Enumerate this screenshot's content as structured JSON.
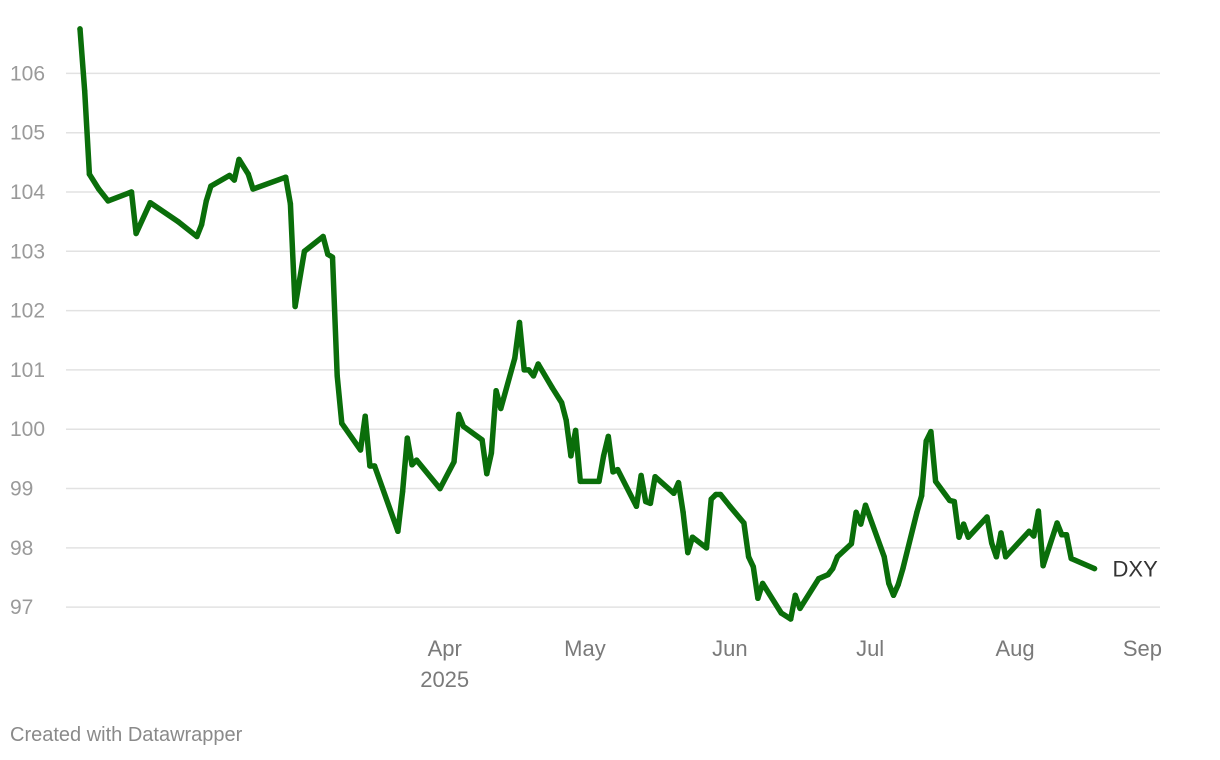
{
  "chart_data": {
    "type": "line",
    "title": "",
    "xlabel": "",
    "ylabel": "",
    "ylim": [
      96.75,
      106.9
    ],
    "xlim": [
      "2025-01-10",
      "2025-09-01"
    ],
    "y_ticks": [
      97,
      98,
      99,
      100,
      101,
      102,
      103,
      104,
      105,
      106
    ],
    "x_ticks": [
      {
        "date": "2025-04-01",
        "label": "Apr",
        "sublabel": "2025"
      },
      {
        "date": "2025-05-01",
        "label": "May",
        "sublabel": ""
      },
      {
        "date": "2025-06-01",
        "label": "Jun",
        "sublabel": ""
      },
      {
        "date": "2025-07-01",
        "label": "Jul",
        "sublabel": ""
      },
      {
        "date": "2025-08-01",
        "label": "Aug",
        "sublabel": ""
      },
      {
        "date": "2025-09-01",
        "label": "Sep",
        "sublabel": ""
      }
    ],
    "grid": true,
    "legend": "end-of-line label",
    "series": [
      {
        "name": "DXY",
        "color": "#0a6e0a",
        "points": [
          [
            "2025-01-13",
            106.75
          ],
          [
            "2025-01-14",
            105.7
          ],
          [
            "2025-01-15",
            104.3
          ],
          [
            "2025-01-17",
            104.05
          ],
          [
            "2025-01-19",
            103.85
          ],
          [
            "2025-01-24",
            104.0
          ],
          [
            "2025-01-25",
            103.3
          ],
          [
            "2025-01-28",
            103.82
          ],
          [
            "2025-02-03",
            103.5
          ],
          [
            "2025-02-07",
            103.25
          ],
          [
            "2025-02-08",
            103.45
          ],
          [
            "2025-02-09",
            103.85
          ],
          [
            "2025-02-10",
            104.1
          ],
          [
            "2025-02-14",
            104.28
          ],
          [
            "2025-02-15",
            104.2
          ],
          [
            "2025-02-16",
            104.55
          ],
          [
            "2025-02-18",
            104.3
          ],
          [
            "2025-02-19",
            104.05
          ],
          [
            "2025-02-26",
            104.25
          ],
          [
            "2025-02-27",
            103.8
          ],
          [
            "2025-02-28",
            102.07
          ],
          [
            "2025-03-02",
            103.0
          ],
          [
            "2025-03-06",
            103.25
          ],
          [
            "2025-03-07",
            102.95
          ],
          [
            "2025-03-08",
            102.9
          ],
          [
            "2025-03-09",
            100.9
          ],
          [
            "2025-03-10",
            100.1
          ],
          [
            "2025-03-14",
            99.65
          ],
          [
            "2025-03-15",
            100.22
          ],
          [
            "2025-03-16",
            99.38
          ],
          [
            "2025-03-17",
            99.38
          ],
          [
            "2025-03-22",
            98.28
          ],
          [
            "2025-03-23",
            98.95
          ],
          [
            "2025-03-24",
            99.85
          ],
          [
            "2025-03-25",
            99.4
          ],
          [
            "2025-03-26",
            99.48
          ],
          [
            "2025-03-31",
            99.0
          ],
          [
            "2025-04-03",
            99.45
          ],
          [
            "2025-04-04",
            100.25
          ],
          [
            "2025-04-05",
            100.05
          ],
          [
            "2025-04-09",
            99.82
          ],
          [
            "2025-04-10",
            99.25
          ],
          [
            "2025-04-11",
            99.6
          ],
          [
            "2025-04-12",
            100.65
          ],
          [
            "2025-04-13",
            100.35
          ],
          [
            "2025-04-16",
            101.2
          ],
          [
            "2025-04-17",
            101.8
          ],
          [
            "2025-04-18",
            101.0
          ],
          [
            "2025-04-19",
            101.0
          ],
          [
            "2025-04-20",
            100.9
          ],
          [
            "2025-04-21",
            101.1
          ],
          [
            "2025-04-24",
            100.7
          ],
          [
            "2025-04-26",
            100.45
          ],
          [
            "2025-04-27",
            100.15
          ],
          [
            "2025-04-28",
            99.55
          ],
          [
            "2025-04-29",
            99.98
          ],
          [
            "2025-04-30",
            99.12
          ],
          [
            "2025-05-04",
            99.12
          ],
          [
            "2025-05-05",
            99.55
          ],
          [
            "2025-05-06",
            99.88
          ],
          [
            "2025-05-07",
            99.28
          ],
          [
            "2025-05-08",
            99.32
          ],
          [
            "2025-05-12",
            98.7
          ],
          [
            "2025-05-13",
            99.22
          ],
          [
            "2025-05-14",
            98.78
          ],
          [
            "2025-05-15",
            98.75
          ],
          [
            "2025-05-16",
            99.2
          ],
          [
            "2025-05-20",
            98.92
          ],
          [
            "2025-05-21",
            99.1
          ],
          [
            "2025-05-22",
            98.6
          ],
          [
            "2025-05-23",
            97.92
          ],
          [
            "2025-05-24",
            98.18
          ],
          [
            "2025-05-27",
            98.0
          ],
          [
            "2025-05-28",
            98.82
          ],
          [
            "2025-05-29",
            98.9
          ],
          [
            "2025-05-30",
            98.9
          ],
          [
            "2025-06-01",
            98.7
          ],
          [
            "2025-06-04",
            98.42
          ],
          [
            "2025-06-05",
            97.85
          ],
          [
            "2025-06-06",
            97.68
          ],
          [
            "2025-06-07",
            97.15
          ],
          [
            "2025-06-08",
            97.4
          ],
          [
            "2025-06-12",
            96.9
          ],
          [
            "2025-06-14",
            96.8
          ],
          [
            "2025-06-15",
            97.2
          ],
          [
            "2025-06-16",
            96.98
          ],
          [
            "2025-06-20",
            97.48
          ],
          [
            "2025-06-22",
            97.55
          ],
          [
            "2025-06-23",
            97.65
          ],
          [
            "2025-06-24",
            97.85
          ],
          [
            "2025-06-27",
            98.07
          ],
          [
            "2025-06-28",
            98.6
          ],
          [
            "2025-06-29",
            98.4
          ],
          [
            "2025-06-30",
            98.72
          ],
          [
            "2025-07-04",
            97.85
          ],
          [
            "2025-07-05",
            97.4
          ],
          [
            "2025-07-06",
            97.2
          ],
          [
            "2025-07-07",
            97.38
          ],
          [
            "2025-07-08",
            97.65
          ],
          [
            "2025-07-11",
            98.6
          ],
          [
            "2025-07-12",
            98.88
          ],
          [
            "2025-07-13",
            99.8
          ],
          [
            "2025-07-14",
            99.96
          ],
          [
            "2025-07-15",
            99.12
          ],
          [
            "2025-07-18",
            98.8
          ],
          [
            "2025-07-19",
            98.78
          ],
          [
            "2025-07-20",
            98.18
          ],
          [
            "2025-07-21",
            98.4
          ],
          [
            "2025-07-22",
            98.18
          ],
          [
            "2025-07-26",
            98.52
          ],
          [
            "2025-07-27",
            98.08
          ],
          [
            "2025-07-28",
            97.85
          ],
          [
            "2025-07-29",
            98.25
          ],
          [
            "2025-07-30",
            97.85
          ],
          [
            "2025-08-04",
            98.28
          ],
          [
            "2025-08-05",
            98.2
          ],
          [
            "2025-08-06",
            98.62
          ],
          [
            "2025-08-07",
            97.7
          ],
          [
            "2025-08-10",
            98.42
          ],
          [
            "2025-08-11",
            98.22
          ],
          [
            "2025-08-12",
            98.22
          ],
          [
            "2025-08-13",
            97.82
          ],
          [
            "2025-08-18",
            97.65
          ]
        ]
      }
    ]
  },
  "footer": {
    "credit": "Created with Datawrapper"
  }
}
